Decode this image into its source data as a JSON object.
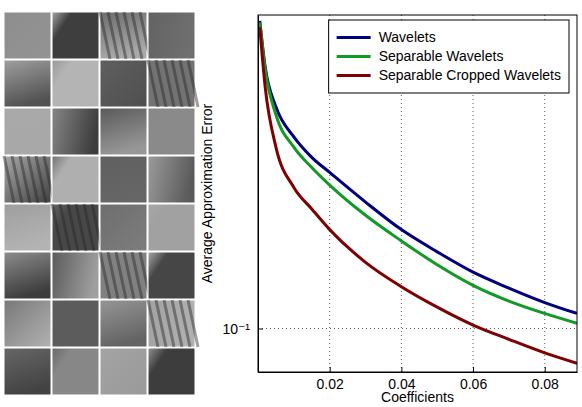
{
  "chart_data": {
    "type": "line",
    "xlabel": "Coefficients",
    "ylabel": "Average Approximation Error",
    "x": [
      0.0005,
      0.002,
      0.005,
      0.01,
      0.015,
      0.02,
      0.03,
      0.04,
      0.05,
      0.06,
      0.07,
      0.08,
      0.089
    ],
    "series": [
      {
        "name": "Wavelets",
        "color": "#00007f",
        "values": [
          0.58,
          0.446,
          0.355,
          0.299,
          0.266,
          0.244,
          0.206,
          0.176,
          0.155,
          0.138,
          0.126,
          0.116,
          0.109
        ]
      },
      {
        "name": "Separable Wavelets",
        "color": "#119a26",
        "values": [
          0.575,
          0.44,
          0.339,
          0.282,
          0.251,
          0.227,
          0.191,
          0.165,
          0.144,
          0.128,
          0.117,
          0.109,
          0.103
        ]
      },
      {
        "name": "Separable Cropped Wavelets",
        "color": "#7f0000",
        "values": [
          0.56,
          0.398,
          0.282,
          0.224,
          0.198,
          0.176,
          0.146,
          0.127,
          0.113,
          0.102,
          0.094,
          0.087,
          0.082
        ]
      }
    ],
    "xlim": [
      0,
      0.089
    ],
    "ylim": [
      0.078,
      0.6
    ],
    "xticks": [
      0.02,
      0.04,
      0.06,
      0.08
    ],
    "yticks": [
      {
        "value": 0.1,
        "label": "10⁻¹"
      }
    ],
    "log": "y",
    "grid": true,
    "legend": "upper right"
  }
}
